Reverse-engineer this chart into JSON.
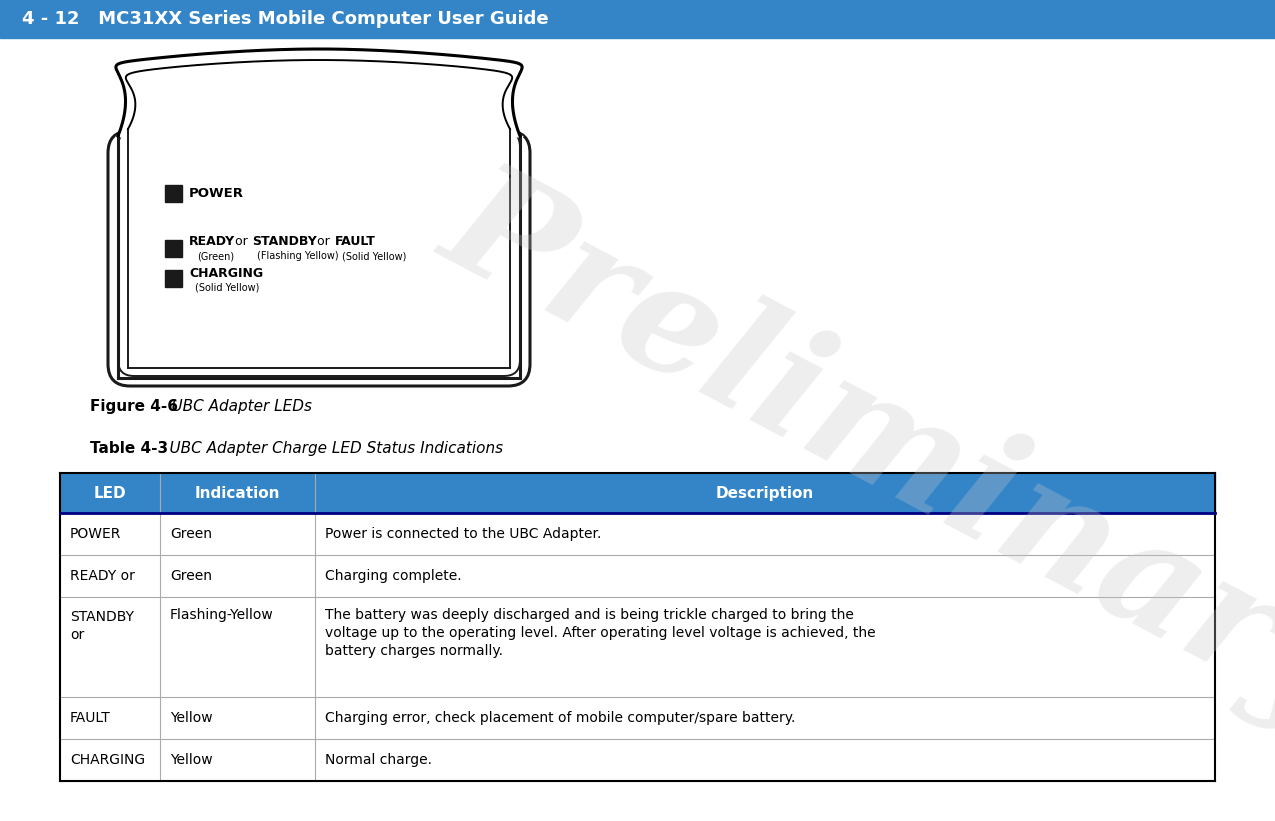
{
  "header_bg": "#3385c8",
  "header_text": "4 - 12   MC31XX Series Mobile Computer User Guide",
  "header_text_color": "#ffffff",
  "page_bg": "#ffffff",
  "figure_caption_bold": "Figure 4-6",
  "figure_caption_italic": "    UBC Adapter LEDs",
  "table_title_bold": "Table 4-3",
  "table_title_italic": "    UBC Adapter Charge LED Status Indications",
  "table_header_bg": "#3385c8",
  "table_header_text_color": "#ffffff",
  "table_cols": [
    "LED",
    "Indication",
    "Description"
  ],
  "table_rows": [
    [
      "POWER",
      "Green",
      "Power is connected to the UBC Adapter."
    ],
    [
      "READY or",
      "Green",
      "Charging complete."
    ],
    [
      "STANDBY\nor",
      "Flashing-Yellow",
      "The battery was deeply discharged and is being trickle charged to bring the\nvoltage up to the operating level. After operating level voltage is achieved, the\nbattery charges normally."
    ],
    [
      "FAULT",
      "Yellow",
      "Charging error, check placement of mobile computer/spare battery."
    ],
    [
      "CHARGING",
      "Yellow",
      "Normal charge."
    ]
  ],
  "watermark_text": "Preliminary",
  "watermark_color": "#c8c8c8",
  "watermark_alpha": 0.3
}
